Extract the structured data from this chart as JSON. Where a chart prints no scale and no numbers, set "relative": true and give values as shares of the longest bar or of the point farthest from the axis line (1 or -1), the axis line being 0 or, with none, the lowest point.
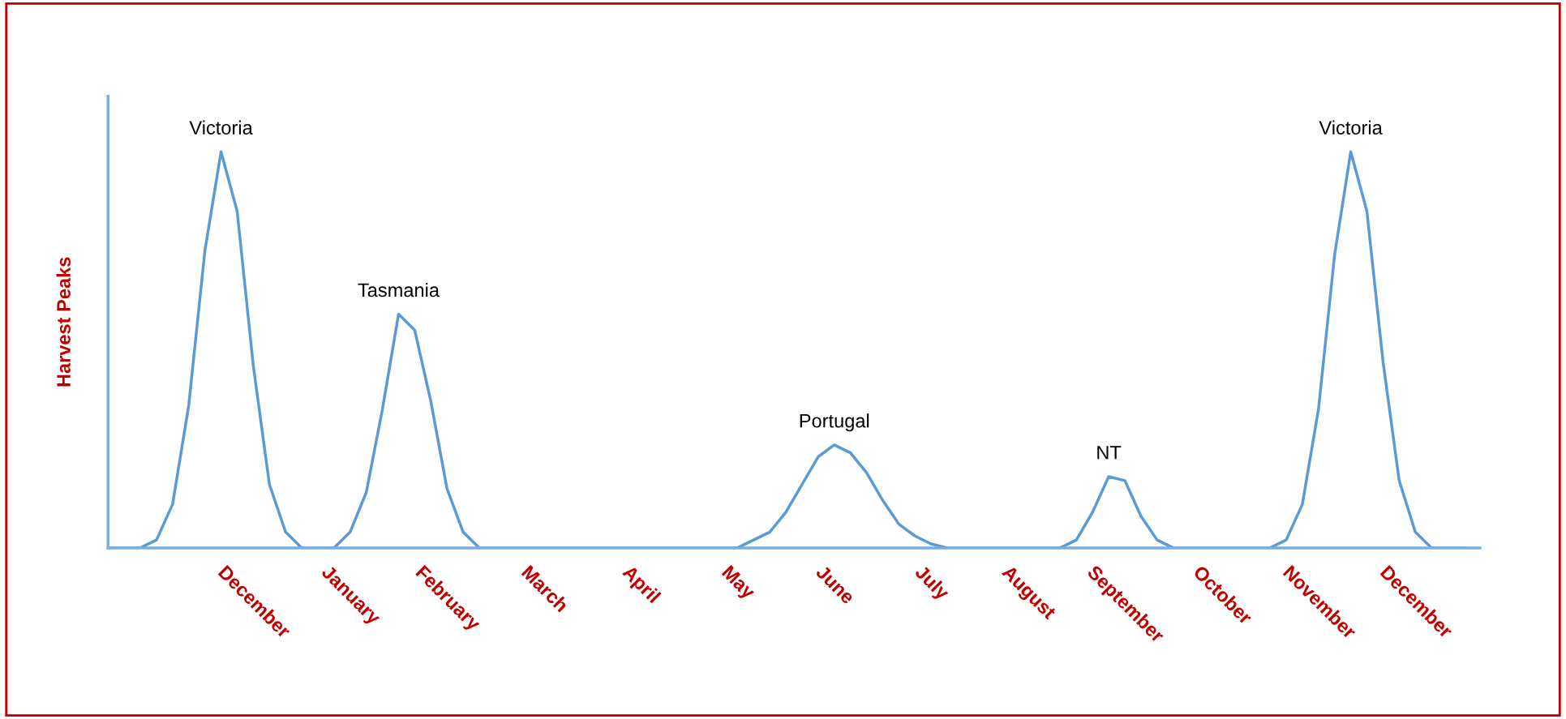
{
  "chart_data": {
    "type": "line",
    "relative": true,
    "ylabel": "Harvest Peaks",
    "categories": [
      null,
      null,
      null,
      null,
      null,
      null,
      null,
      null,
      null,
      "December",
      null,
      null,
      null,
      null,
      null,
      "January",
      null,
      null,
      null,
      null,
      null,
      "February",
      null,
      null,
      null,
      null,
      null,
      "March",
      null,
      null,
      null,
      null,
      null,
      "April",
      null,
      null,
      null,
      null,
      null,
      "May",
      null,
      null,
      null,
      null,
      null,
      "June",
      null,
      null,
      null,
      null,
      null,
      "July",
      null,
      null,
      null,
      null,
      null,
      "August",
      null,
      null,
      null,
      null,
      null,
      "September",
      null,
      null,
      null,
      null,
      null,
      "October",
      null,
      null,
      null,
      null,
      null,
      "November",
      null,
      null,
      null,
      null,
      null,
      "December",
      null,
      null,
      null
    ],
    "series": [
      {
        "color": "#5b9bd5",
        "values": [
          0,
          0,
          0,
          0.02,
          0.11,
          0.36,
          0.75,
          1,
          0.85,
          0.46,
          0.16,
          0.04,
          0,
          0,
          0,
          0.04,
          0.14,
          0.35,
          0.59,
          0.55,
          0.37,
          0.15,
          0.04,
          0,
          0,
          0,
          0,
          0,
          0,
          0,
          0,
          0,
          0,
          0,
          0,
          0,
          0,
          0,
          0,
          0,
          0.02,
          0.04,
          0.09,
          0.16,
          0.23,
          0.26,
          0.24,
          0.19,
          0.12,
          0.06,
          0.03,
          0.01,
          0,
          0,
          0,
          0,
          0,
          0,
          0,
          0,
          0.02,
          0.09,
          0.18,
          0.17,
          0.08,
          0.02,
          0,
          0,
          0,
          0,
          0,
          0,
          0,
          0.02,
          0.11,
          0.35,
          0.74,
          1,
          0.85,
          0.47,
          0.17,
          0.04,
          0,
          0,
          0
        ]
      }
    ],
    "annotations": [
      {
        "text": "Victoria",
        "y": 1
      },
      {
        "text": "Tasmania",
        "y": 0.59
      },
      {
        "text": "Portugal",
        "y": 0.26
      },
      {
        "text": "NT",
        "y": 0.18
      },
      {
        "text": "Victoria",
        "y": 1
      }
    ],
    "grid": false,
    "legend": false,
    "marker": "none",
    "line_style": "solid"
  }
}
